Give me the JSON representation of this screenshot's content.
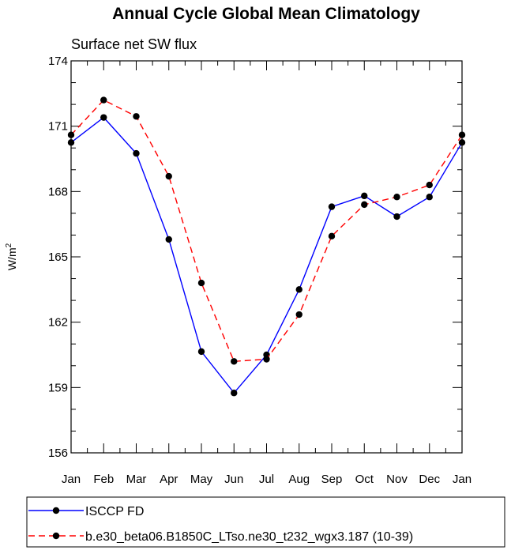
{
  "chart_data": {
    "type": "line",
    "title": "Annual Cycle Global Mean Climatology",
    "subtitle": "Surface net SW flux",
    "ylabel_base": "W/m",
    "ylabel_sup": "2",
    "ylim": [
      156,
      174
    ],
    "yticks": [
      "174",
      "171",
      "168",
      "165",
      "162",
      "159",
      "156"
    ],
    "categories": [
      "Jan",
      "Feb",
      "Mar",
      "Apr",
      "May",
      "Jun",
      "Jul",
      "Aug",
      "Sep",
      "Oct",
      "Nov",
      "Dec",
      "Jan"
    ],
    "grid": false,
    "legend_position": "bottom",
    "series": [
      {
        "name": "ISCCP FD",
        "color": "#0000ff",
        "dash": "solid",
        "values": [
          170.25,
          171.4,
          169.75,
          165.8,
          160.65,
          158.75,
          160.5,
          163.5,
          167.3,
          167.8,
          166.85,
          167.75,
          170.25
        ]
      },
      {
        "name": "b.e30_beta06.B1850C_LTso.ne30_t232_wgx3.187 (10-39)",
        "color": "#ff0000",
        "dash": "dashed",
        "values": [
          170.6,
          172.2,
          171.45,
          168.7,
          163.8,
          160.2,
          160.3,
          162.35,
          165.95,
          167.4,
          167.75,
          168.3,
          170.6
        ]
      }
    ]
  }
}
